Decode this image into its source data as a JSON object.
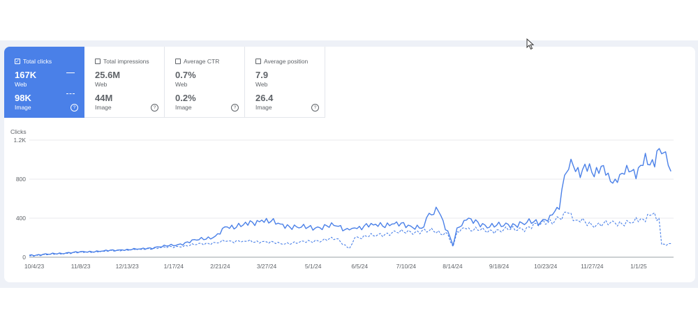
{
  "metrics": [
    {
      "label": "Total clicks",
      "active": true,
      "web_value": "167K",
      "web_label": "Web",
      "image_value": "98K",
      "image_label": "Image"
    },
    {
      "label": "Total impressions",
      "active": false,
      "web_value": "25.6M",
      "web_label": "Web",
      "image_value": "44M",
      "image_label": "Image"
    },
    {
      "label": "Average CTR",
      "active": false,
      "web_value": "0.7%",
      "web_label": "Web",
      "image_value": "0.2%",
      "image_label": "Image"
    },
    {
      "label": "Average position",
      "active": false,
      "web_value": "7.9",
      "web_label": "Web",
      "image_value": "26.4",
      "image_label": "Image"
    }
  ],
  "help_glyph": "?",
  "check_glyph": "✓",
  "colors": {
    "accent": "#4a80e8",
    "series": "#4a80e8",
    "grid": "#e8eaed",
    "text": "#5f6368"
  },
  "chart_data": {
    "type": "line",
    "ylabel": "Clicks",
    "yticks": [
      "0",
      "400",
      "800",
      "1.2K"
    ],
    "ytick_values": [
      0,
      400,
      800,
      1200
    ],
    "ylim": [
      0,
      1200
    ],
    "xtick_labels": [
      "10/4/23",
      "11/8/23",
      "12/13/23",
      "1/17/24",
      "2/21/24",
      "3/27/24",
      "5/1/24",
      "6/5/24",
      "7/10/24",
      "8/14/24",
      "9/18/24",
      "10/23/24",
      "11/27/24",
      "1/1/25"
    ],
    "xlim": [
      "2023-10-04",
      "2025-01-31"
    ],
    "grid": "horizontal",
    "series": [
      {
        "style": "solid",
        "x": [
          "2023-10-04",
          "2023-10-18",
          "2023-11-01",
          "2023-11-15",
          "2023-11-29",
          "2023-12-13",
          "2023-12-27",
          "2024-01-10",
          "2024-01-24",
          "2024-02-07",
          "2024-02-21",
          "2024-03-01",
          "2024-03-13",
          "2024-03-27",
          "2024-04-10",
          "2024-04-24",
          "2024-05-08",
          "2024-05-22",
          "2024-06-01",
          "2024-06-05",
          "2024-06-19",
          "2024-07-03",
          "2024-07-17",
          "2024-07-27",
          "2024-07-31",
          "2024-08-07",
          "2024-08-14",
          "2024-08-18",
          "2024-08-21",
          "2024-08-28",
          "2024-09-11",
          "2024-09-25",
          "2024-10-09",
          "2024-10-23",
          "2024-10-30",
          "2024-11-06",
          "2024-11-10",
          "2024-11-13",
          "2024-11-20",
          "2024-11-27",
          "2024-12-04",
          "2024-12-11",
          "2024-12-18",
          "2024-12-25",
          "2025-01-01",
          "2025-01-08",
          "2025-01-15",
          "2025-01-22",
          "2025-01-25",
          "2025-01-29"
        ],
        "values": [
          20,
          30,
          45,
          55,
          65,
          75,
          85,
          105,
          130,
          175,
          215,
          310,
          330,
          380,
          340,
          300,
          310,
          320,
          280,
          300,
          330,
          340,
          320,
          310,
          450,
          470,
          270,
          120,
          300,
          380,
          330,
          320,
          350,
          360,
          430,
          490,
          840,
          900,
          920,
          880,
          920,
          840,
          800,
          850,
          900,
          940,
          1000,
          1060,
          1080,
          880
        ]
      },
      {
        "style": "dashed",
        "x": [
          "2023-10-04",
          "2023-10-18",
          "2023-11-01",
          "2023-11-15",
          "2023-11-29",
          "2023-12-13",
          "2023-12-27",
          "2024-01-10",
          "2024-01-24",
          "2024-02-07",
          "2024-02-21",
          "2024-03-01",
          "2024-03-13",
          "2024-03-27",
          "2024-04-10",
          "2024-04-24",
          "2024-05-08",
          "2024-05-22",
          "2024-06-01",
          "2024-06-05",
          "2024-06-19",
          "2024-07-03",
          "2024-07-17",
          "2024-07-31",
          "2024-08-14",
          "2024-08-18",
          "2024-08-21",
          "2024-08-28",
          "2024-09-11",
          "2024-09-25",
          "2024-10-09",
          "2024-10-23",
          "2024-11-06",
          "2024-11-13",
          "2024-11-20",
          "2024-12-04",
          "2024-12-18",
          "2025-01-01",
          "2025-01-08",
          "2025-01-15",
          "2025-01-20",
          "2025-01-22",
          "2025-01-29"
        ],
        "values": [
          15,
          25,
          40,
          50,
          60,
          70,
          80,
          95,
          110,
          130,
          150,
          165,
          165,
          160,
          140,
          150,
          170,
          190,
          90,
          200,
          220,
          250,
          260,
          270,
          240,
          110,
          260,
          290,
          270,
          280,
          290,
          340,
          400,
          450,
          380,
          330,
          350,
          360,
          390,
          440,
          400,
          130,
          140
        ]
      }
    ]
  }
}
